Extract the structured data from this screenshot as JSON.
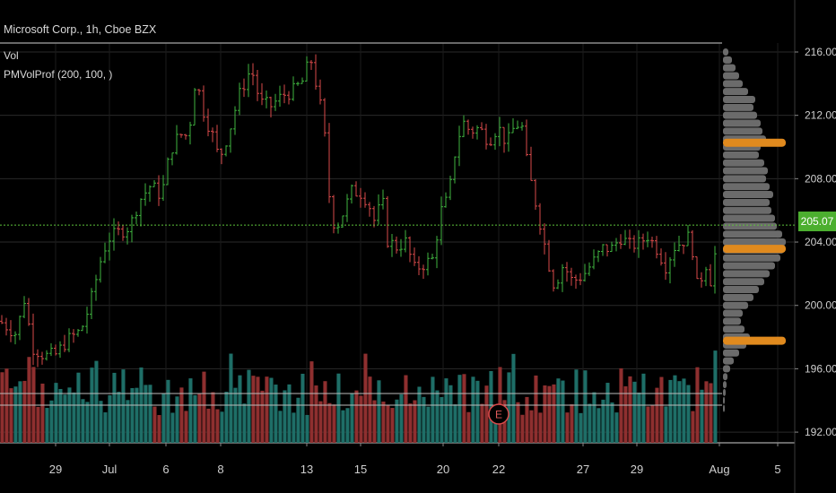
{
  "symbol_header": "Microsoft Corp., 1h, Cboe BZX",
  "indicators": [
    "Vol",
    "PMVolProf (200, 100, )"
  ],
  "last_price_label": "205.07",
  "earnings_marker": "E",
  "colors": {
    "up": "#3fb33f",
    "down": "#d84a4a",
    "vol_up": "#1e6e67",
    "vol_down": "#8e2f2f",
    "profile": "#6b6b6b",
    "poc": "#e08a1e",
    "grid": "#2a2a2a",
    "last_price_line": "#5ec23a"
  },
  "chart_data": {
    "type": "candlestick",
    "title": "Microsoft Corp., 1h, Cboe BZX",
    "price_axis": {
      "ticks": [
        "216.00",
        "212.00",
        "208.00",
        "204.00",
        "200.00",
        "196.00",
        "192.00"
      ],
      "ylim": [
        191.5,
        216.6
      ]
    },
    "time_axis": {
      "ticks": [
        "29",
        "Jul",
        "6",
        "8",
        "13",
        "15",
        "20",
        "22",
        "27",
        "29",
        "Aug",
        "5"
      ]
    },
    "last_price": 205.07,
    "price_path": [
      [
        0,
        199.0
      ],
      [
        18,
        198.2
      ],
      [
        28,
        200.6
      ],
      [
        35,
        197.4
      ],
      [
        50,
        196.8
      ],
      [
        62,
        196.9
      ],
      [
        75,
        197.8
      ],
      [
        90,
        198.4
      ],
      [
        100,
        200.0
      ],
      [
        112,
        202.8
      ],
      [
        120,
        204.2
      ],
      [
        132,
        204.6
      ],
      [
        145,
        205.0
      ],
      [
        155,
        206.6
      ],
      [
        168,
        207.6
      ],
      [
        180,
        206.9
      ],
      [
        190,
        209.8
      ],
      [
        200,
        210.8
      ],
      [
        210,
        210.7
      ],
      [
        218,
        214.4
      ],
      [
        228,
        212.0
      ],
      [
        238,
        210.6
      ],
      [
        244,
        209.2
      ],
      [
        255,
        210.9
      ],
      [
        266,
        213.2
      ],
      [
        280,
        215.0
      ],
      [
        290,
        212.8
      ],
      [
        302,
        212.6
      ],
      [
        316,
        213.3
      ],
      [
        326,
        213.5
      ],
      [
        338,
        214.2
      ],
      [
        346,
        215.7
      ],
      [
        356,
        213.0
      ],
      [
        362,
        210.6
      ],
      [
        368,
        206.2
      ],
      [
        374,
        204.8
      ],
      [
        382,
        205.8
      ],
      [
        392,
        207.2
      ],
      [
        402,
        207.1
      ],
      [
        410,
        206.6
      ],
      [
        418,
        205.2
      ],
      [
        426,
        206.8
      ],
      [
        432,
        204.1
      ],
      [
        442,
        203.7
      ],
      [
        452,
        204.0
      ],
      [
        462,
        202.3
      ],
      [
        472,
        202.6
      ],
      [
        482,
        202.9
      ],
      [
        492,
        206.0
      ],
      [
        500,
        206.8
      ],
      [
        508,
        210.0
      ],
      [
        516,
        211.6
      ],
      [
        524,
        211.0
      ],
      [
        534,
        211.2
      ],
      [
        545,
        210.4
      ],
      [
        555,
        211.3
      ],
      [
        565,
        210.2
      ],
      [
        575,
        211.5
      ],
      [
        582,
        211.2
      ],
      [
        588,
        208.7
      ],
      [
        597,
        206.5
      ],
      [
        604,
        204.7
      ],
      [
        610,
        203.0
      ],
      [
        618,
        201.2
      ],
      [
        628,
        202.6
      ],
      [
        638,
        201.5
      ],
      [
        650,
        201.9
      ],
      [
        662,
        202.8
      ],
      [
        672,
        203.6
      ],
      [
        682,
        203.6
      ],
      [
        692,
        204.3
      ],
      [
        702,
        203.8
      ],
      [
        712,
        203.9
      ],
      [
        722,
        204.4
      ],
      [
        732,
        203.6
      ],
      [
        742,
        202.5
      ],
      [
        752,
        203.7
      ],
      [
        762,
        204.1
      ],
      [
        770,
        204.4
      ],
      [
        778,
        200.8
      ],
      [
        786,
        202.8
      ],
      [
        794,
        201.2
      ],
      [
        800,
        205.2
      ]
    ],
    "volume": {
      "bars": 160,
      "earnings_marker_at": "22"
    },
    "volume_profile": {
      "levels": [
        [
          216.0,
          6
        ],
        [
          215.5,
          10
        ],
        [
          215.0,
          14
        ],
        [
          214.5,
          18
        ],
        [
          214.0,
          22
        ],
        [
          213.5,
          28
        ],
        [
          213.0,
          36
        ],
        [
          212.5,
          34
        ],
        [
          212.0,
          38
        ],
        [
          211.5,
          42
        ],
        [
          211.0,
          44
        ],
        [
          210.5,
          48
        ],
        [
          210.0,
          42
        ],
        [
          209.5,
          40
        ],
        [
          209.0,
          46
        ],
        [
          208.5,
          50
        ],
        [
          208.0,
          48
        ],
        [
          207.5,
          52
        ],
        [
          207.0,
          56
        ],
        [
          206.5,
          52
        ],
        [
          206.0,
          54
        ],
        [
          205.5,
          58
        ],
        [
          205.0,
          60
        ],
        [
          204.5,
          66
        ],
        [
          204.0,
          70
        ],
        [
          203.5,
          68
        ],
        [
          203.0,
          64
        ],
        [
          202.5,
          58
        ],
        [
          202.0,
          52
        ],
        [
          201.5,
          46
        ],
        [
          201.0,
          40
        ],
        [
          200.5,
          34
        ],
        [
          200.0,
          28
        ],
        [
          199.5,
          22
        ],
        [
          199.0,
          20
        ],
        [
          198.5,
          24
        ],
        [
          198.0,
          30
        ],
        [
          197.5,
          26
        ],
        [
          197.0,
          18
        ],
        [
          196.5,
          12
        ],
        [
          196.0,
          8
        ],
        [
          195.5,
          5
        ],
        [
          195.0,
          4
        ],
        [
          194.5,
          3
        ],
        [
          194.0,
          2
        ],
        [
          193.5,
          2
        ]
      ],
      "highlighted_levels": [
        210.3,
        203.6,
        197.8
      ]
    }
  }
}
